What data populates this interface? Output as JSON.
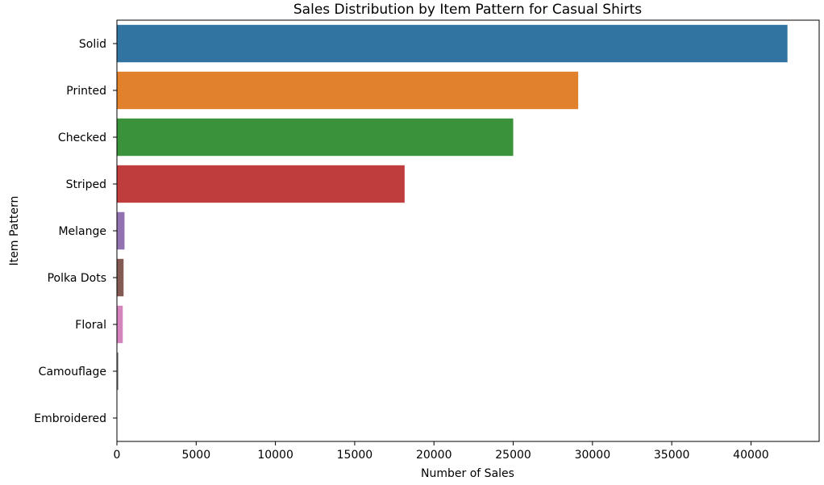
{
  "chart_data": {
    "type": "bar",
    "orientation": "horizontal",
    "title": "Sales Distribution by Item Pattern for Casual Shirts",
    "xlabel": "Number of Sales",
    "ylabel": "Item Pattern",
    "categories": [
      "Solid",
      "Printed",
      "Checked",
      "Striped",
      "Melange",
      "Polka Dots",
      "Floral",
      "Camouflage",
      "Embroidered"
    ],
    "values": [
      42300,
      29100,
      25000,
      18150,
      480,
      420,
      370,
      90,
      20
    ],
    "colors": [
      "#3274a1",
      "#e1812c",
      "#3a923a",
      "#c03d3e",
      "#9372b2",
      "#845b53",
      "#d684bd",
      "#7f7f7f",
      "#a9aa35"
    ],
    "xlim": [
      0,
      44300
    ],
    "xticks": [
      0,
      5000,
      10000,
      15000,
      20000,
      25000,
      30000,
      35000,
      40000
    ],
    "grid": false
  }
}
